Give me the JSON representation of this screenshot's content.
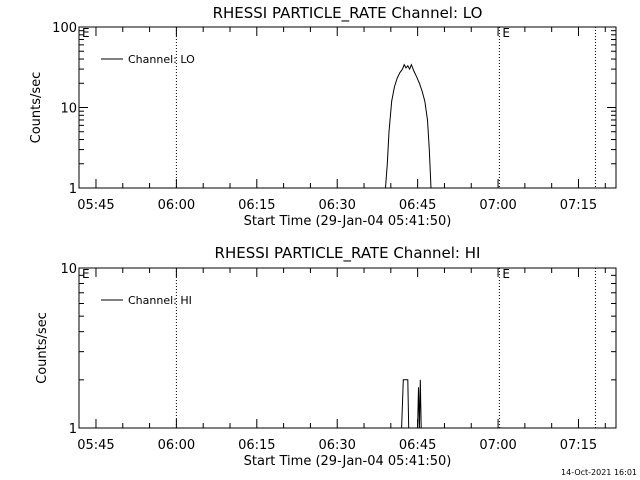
{
  "chart_data": [
    {
      "type": "line",
      "title": "RHESSI PARTICLE_RATE Channel: LO",
      "xlabel": "Start Time (29-Jan-04 05:41:50)",
      "ylabel": "Counts/sec",
      "yscale": "log",
      "ylim": [
        1,
        100
      ],
      "xlim": [
        "05:41:50",
        "07:22:00"
      ],
      "ytick_labels": [
        {
          "value": 1,
          "label": "1"
        },
        {
          "value": 10,
          "label": "10"
        },
        {
          "value": 100,
          "label": "100"
        }
      ],
      "xtick_labels": [
        "05:45",
        "06:00",
        "06:15",
        "06:30",
        "06:45",
        "07:00",
        "07:15"
      ],
      "grid": false,
      "legend": "top-left",
      "series": [
        {
          "name": "Channel: LO",
          "color": "#000000",
          "points": [
            [
              "06:39:00",
              1
            ],
            [
              "06:39:20",
              2
            ],
            [
              "06:39:40",
              5
            ],
            [
              "06:40:10",
              12
            ],
            [
              "06:40:40",
              18
            ],
            [
              "06:41:10",
              23
            ],
            [
              "06:41:40",
              27
            ],
            [
              "06:42:10",
              30
            ],
            [
              "06:42:30",
              34
            ],
            [
              "06:42:50",
              31
            ],
            [
              "06:43:10",
              33
            ],
            [
              "06:43:30",
              30
            ],
            [
              "06:43:50",
              34
            ],
            [
              "06:44:20",
              28
            ],
            [
              "06:44:50",
              24
            ],
            [
              "06:45:20",
              20
            ],
            [
              "06:45:50",
              16
            ],
            [
              "06:46:20",
              12
            ],
            [
              "06:46:50",
              7
            ],
            [
              "06:47:10",
              3
            ],
            [
              "06:47:30",
              1
            ]
          ]
        }
      ],
      "annotations": [
        {
          "text": "E",
          "at": "05:41:50"
        },
        {
          "text": "E",
          "at": "07:00:15"
        }
      ],
      "vertical_markers": [
        "06:00:00",
        "07:00:15",
        "07:18:10"
      ]
    },
    {
      "type": "line",
      "title": "RHESSI PARTICLE_RATE Channel: HI",
      "xlabel": "Start Time (29-Jan-04 05:41:50)",
      "ylabel": "Counts/sec",
      "yscale": "log",
      "ylim": [
        1,
        10
      ],
      "xlim": [
        "05:41:50",
        "07:22:00"
      ],
      "ytick_labels": [
        {
          "value": 1,
          "label": "1"
        },
        {
          "value": 10,
          "label": "10"
        }
      ],
      "xtick_labels": [
        "05:45",
        "06:00",
        "06:15",
        "06:30",
        "06:45",
        "07:00",
        "07:15"
      ],
      "grid": false,
      "legend": "top-left",
      "series": [
        {
          "name": "Channel: HI",
          "color": "#000000",
          "points": [
            [
              "06:42:00",
              1
            ],
            [
              "06:42:20",
              2
            ],
            [
              "06:43:10",
              2
            ],
            [
              "06:43:20",
              1
            ],
            [
              "06:45:00",
              1
            ],
            [
              "06:45:10",
              1.8
            ],
            [
              "06:45:20",
              1
            ],
            [
              "06:45:30",
              2
            ],
            [
              "06:45:40",
              1
            ]
          ]
        }
      ],
      "annotations": [
        {
          "text": "E",
          "at": "05:41:50"
        },
        {
          "text": "E",
          "at": "07:00:15"
        }
      ],
      "vertical_markers": [
        "06:00:00",
        "07:00:15",
        "07:18:10"
      ]
    }
  ],
  "footer": {
    "timestamp": "14-Oct-2021 16:01"
  }
}
